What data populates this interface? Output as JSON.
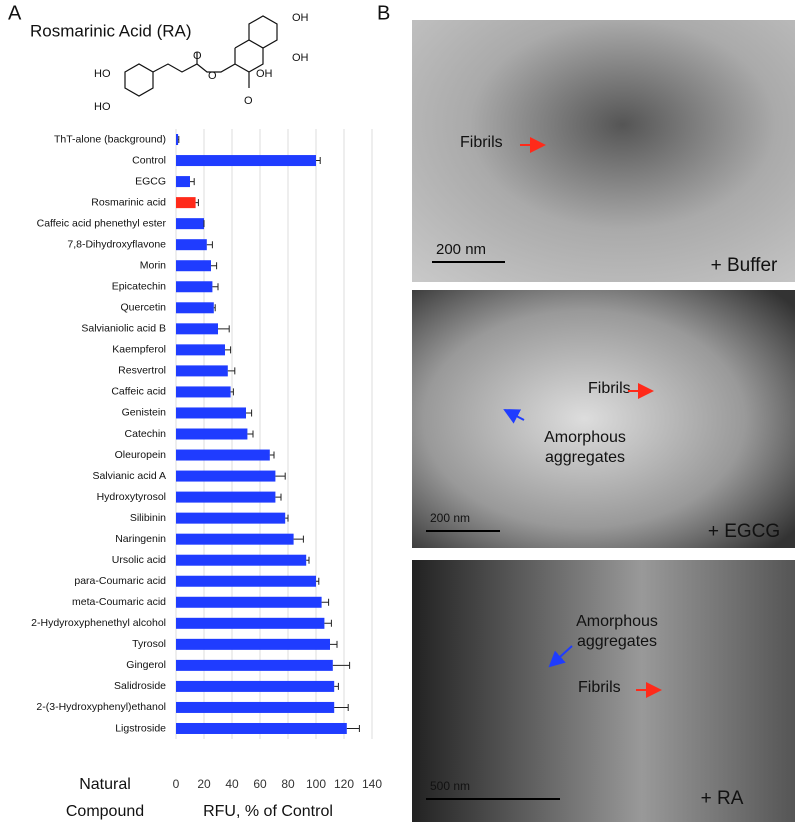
{
  "chart_data": {
    "type": "hbar",
    "categories": [
      "ThT-alone (background)",
      "Control",
      "EGCG",
      "Rosmarinic acid",
      "Caffeic acid phenethyl ester",
      "7,8-Dihydroxyflavone",
      "Morin",
      "Epicatechin",
      "Quercetin",
      "Salvianiolic acid B",
      "Kaempferol",
      "Resvertrol",
      "Caffeic acid",
      "Genistein",
      "Catechin",
      "Oleuropein",
      "Salvianic acid A",
      "Hydroxytyrosol",
      "Silibinin",
      "Naringenin",
      "Ursolic acid",
      "para-Coumaric acid",
      "meta-Coumaric acid",
      "2-Hydyroxyphenethyl alcohol",
      "Tyrosol",
      "Gingerol",
      "Salidroside",
      "2-(3-Hydroxyphenyl)ethanol",
      "Ligstroside"
    ],
    "series": [
      {
        "values": [
          1.5,
          100,
          10,
          14,
          20,
          22,
          25,
          26,
          27,
          30,
          35,
          37,
          39,
          50,
          51,
          67,
          71,
          71,
          78,
          84,
          93,
          100,
          104,
          106,
          110,
          112,
          113,
          113,
          122
        ],
        "errors": [
          0.5,
          3,
          3,
          2,
          0,
          4,
          4,
          4,
          1,
          8,
          4,
          5,
          2,
          4,
          4,
          3,
          7,
          4,
          2,
          7,
          2,
          2,
          5,
          5,
          5,
          12,
          3,
          10,
          9
        ],
        "colors": [
          "#1f3cff",
          "#1f3cff",
          "#1f3cff",
          "#ff2a1a",
          "#1f3cff",
          "#1f3cff",
          "#1f3cff",
          "#1f3cff",
          "#1f3cff",
          "#1f3cff",
          "#1f3cff",
          "#1f3cff",
          "#1f3cff",
          "#1f3cff",
          "#1f3cff",
          "#1f3cff",
          "#1f3cff",
          "#1f3cff",
          "#1f3cff",
          "#1f3cff",
          "#1f3cff",
          "#1f3cff",
          "#1f3cff",
          "#1f3cff",
          "#1f3cff",
          "#1f3cff",
          "#1f3cff",
          "#1f3cff",
          "#1f3cff"
        ]
      }
    ],
    "xlim": [
      0,
      140
    ],
    "xticks": [
      0,
      20,
      40,
      60,
      80,
      100,
      120,
      140
    ],
    "grid": true,
    "xlabel": "RFU, % of Control",
    "ylabel": [
      "Natural",
      "Compound"
    ]
  },
  "panel_a": {
    "label": "A",
    "structure_title": "Rosmarinic Acid (RA)",
    "atoms": [
      "OH",
      "OH",
      "HO",
      "HO",
      "O",
      "O",
      "OH",
      "O"
    ]
  },
  "panel_b": {
    "label": "B",
    "images": [
      {
        "labels": [
          "Fibrils"
        ],
        "scale": "200 nm",
        "condition": "+ Buffer"
      },
      {
        "labels": [
          "Fibrils",
          "Amorphous aggregates"
        ],
        "scale": "200 nm",
        "condition": "+ EGCG"
      },
      {
        "labels": [
          "Amorphous aggregates",
          "Fibrils"
        ],
        "scale": "500 nm",
        "condition": "+ RA"
      }
    ]
  }
}
